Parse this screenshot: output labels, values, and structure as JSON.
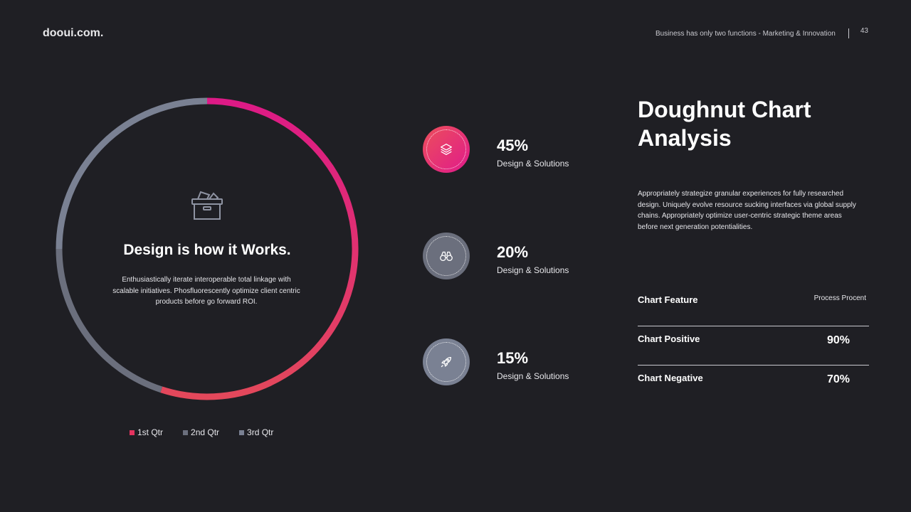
{
  "header": {
    "logo": "dooui.com.",
    "tagline": "Business has only two functions - Marketing & Innovation",
    "page_number": "43"
  },
  "center": {
    "title": "Design is how it Works.",
    "text": "Enthusiastically iterate interoperable total linkage with scalable initiatives. Phosfluorescently optimize client centric products before go forward ROI.",
    "icon": "box-icon"
  },
  "chart_data": {
    "type": "pie",
    "variant": "doughnut",
    "categories": [
      "1st Qtr",
      "2nd Qtr",
      "3rd Qtr"
    ],
    "values": [
      55,
      20,
      25
    ],
    "colors": [
      "#e3335f",
      "#6b6f7d",
      "#7a8193"
    ],
    "legend": "bottom",
    "start_angle_deg": 0
  },
  "stats": [
    {
      "value": "45%",
      "label": "Design & Solutions",
      "icon": "layers-icon",
      "color": "#e2246f"
    },
    {
      "value": "20%",
      "label": "Design & Solutions",
      "icon": "binoculars-icon",
      "color": "#6b6f7d"
    },
    {
      "value": "15%",
      "label": "Design & Solutions",
      "icon": "rocket-icon",
      "color": "#7a8193"
    }
  ],
  "right": {
    "title": "Doughnut Chart Analysis",
    "text": "Appropriately strategize granular experiences for fully researched design. Uniquely evolve resource sucking interfaces via global supply chains. Appropriately optimize user-centric strategic theme areas before next generation potentialities."
  },
  "table": {
    "header_label": "Chart Feature",
    "header_value": "Process Procent",
    "rows": [
      {
        "label": "Chart Positive",
        "value": "90%"
      },
      {
        "label": "Chart Negative",
        "value": "70%"
      }
    ]
  }
}
